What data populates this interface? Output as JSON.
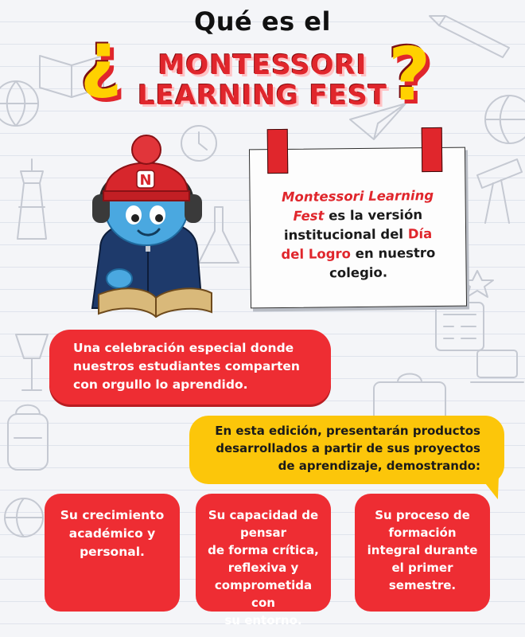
{
  "header": {
    "title_top": "Qué es el",
    "open_question_mark": "¿",
    "title_line1": "MONTESSORI",
    "title_line2": "LEARNING FEST",
    "close_question_mark": "?"
  },
  "note": {
    "name_part1": "Montessori Learning",
    "name_part2": "Fest",
    "text1": " es la versión institucional del ",
    "highlight1": "Día",
    "highlight2": "del Logro",
    "text2": " en nuestro colegio."
  },
  "mascot": {
    "hat_letter": "N"
  },
  "pill": {
    "text": "Una celebración especial donde nuestros estudiantes comparten con orgullo lo aprendido."
  },
  "bubble": {
    "line1": "En esta edición, presentarán productos",
    "line2": "desarrollados a partir de sus proyectos",
    "line3": "de aprendizaje,  demostrando:"
  },
  "cards": [
    {
      "lines": [
        "Su crecimiento",
        "académico y",
        "personal."
      ]
    },
    {
      "lines": [
        "Su capacidad de",
        "pensar",
        "de forma crítica,",
        "reflexiva y",
        "comprometida con",
        "su entorno."
      ]
    },
    {
      "lines": [
        "Su proceso de",
        "formación",
        "integral durante",
        "el primer",
        "semestre."
      ]
    }
  ],
  "colors": {
    "red": "#ee2d33",
    "yellow": "#fcc60a",
    "mascot_skin": "#4aa8e0",
    "hat": "#d7262c"
  }
}
